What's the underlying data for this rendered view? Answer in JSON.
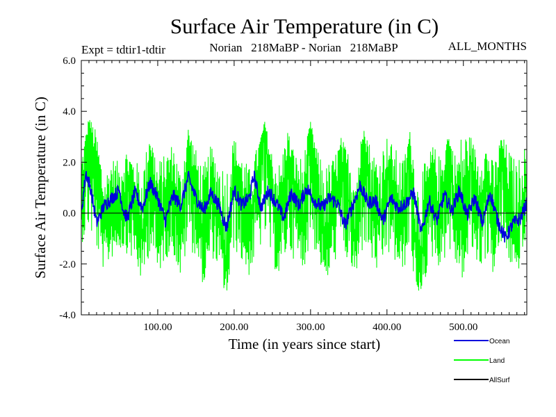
{
  "chart_data": {
    "type": "line",
    "title": "Surface Air Temperature (in C)",
    "subtitle_left": "Expt = tdtir1-tdtir",
    "subtitle_center": "Norian   218MaBP - Norian   218MaBP",
    "subtitle_right": "ALL_MONTHS",
    "xlabel": "Time (in years since start)",
    "ylabel": "Surface Air Temperature (in C)",
    "xlim": [
      0,
      583
    ],
    "ylim": [
      -4.0,
      6.0
    ],
    "x_ticks": [
      100,
      200,
      300,
      400,
      500
    ],
    "x_tick_labels": [
      "100.00",
      "200.00",
      "300.00",
      "400.00",
      "500.00"
    ],
    "y_ticks": [
      -4.0,
      -2.0,
      0.0,
      2.0,
      4.0,
      6.0
    ],
    "y_tick_labels": [
      "-4.0",
      "-2.0",
      "0.0",
      "2.0",
      "4.0",
      "6.0"
    ],
    "zero_line": true,
    "legend_position": "bottom-right",
    "series": [
      {
        "name": "Land",
        "color": "#00ff00",
        "x": [
          0,
          10,
          20,
          30,
          40,
          50,
          60,
          70,
          80,
          90,
          100,
          110,
          120,
          130,
          140,
          150,
          160,
          170,
          180,
          190,
          200,
          210,
          220,
          230,
          240,
          250,
          260,
          270,
          280,
          290,
          300,
          310,
          320,
          330,
          340,
          350,
          360,
          370,
          380,
          390,
          400,
          410,
          420,
          430,
          440,
          450,
          460,
          470,
          480,
          490,
          500,
          510,
          520,
          530,
          540,
          550,
          560,
          570,
          580
        ],
        "values": [
          0.3,
          3.5,
          1.5,
          -0.8,
          0.5,
          0.2,
          1.0,
          0.4,
          -1.2,
          2.3,
          -0.8,
          0.5,
          1.2,
          -1.0,
          2.5,
          0.9,
          -1.5,
          0.7,
          -0.3,
          -2.0,
          1.8,
          0.4,
          -0.8,
          1.2,
          3.5,
          0.5,
          -0.6,
          2.3,
          0.8,
          -0.5,
          3.4,
          0.6,
          -1.5,
          0.2,
          1.8,
          0.5,
          -1.2,
          3.2,
          0.4,
          -0.5,
          1.7,
          0.6,
          -0.9,
          2.9,
          -2.6,
          -0.8,
          1.2,
          -0.4,
          2.8,
          0.2,
          -0.6,
          2.1,
          0.3,
          1.5,
          -0.7,
          2.4,
          0.1,
          -1.0,
          0.9
        ],
        "upper_envelope": [
          2.3,
          3.8,
          3.2,
          1.5,
          2.2,
          2.0,
          2.6,
          2.1,
          1.8,
          3.2,
          2.1,
          2.3,
          2.8,
          1.7,
          3.4,
          2.5,
          1.9,
          2.7,
          2.1,
          1.9,
          3.0,
          2.3,
          1.8,
          2.6,
          3.6,
          2.4,
          2.0,
          3.3,
          2.3,
          2.2,
          3.6,
          2.4,
          1.9,
          2.2,
          3.0,
          2.4,
          2.1,
          3.5,
          2.5,
          2.3,
          3.0,
          2.6,
          2.1,
          3.2,
          1.6,
          2.0,
          2.7,
          2.2,
          3.1,
          2.3,
          3.4,
          3.0,
          2.2,
          2.6,
          2.0,
          3.1,
          2.5,
          2.0,
          2.6
        ],
        "lower_envelope": [
          -1.2,
          -0.8,
          -1.5,
          -2.3,
          -1.8,
          -1.4,
          -1.6,
          -2.0,
          -2.8,
          -1.5,
          -2.5,
          -1.8,
          -1.6,
          -2.6,
          -1.3,
          -1.8,
          -2.9,
          -1.7,
          -2.2,
          -3.5,
          -1.4,
          -2.0,
          -2.5,
          -1.6,
          -1.2,
          -2.0,
          -2.7,
          -1.5,
          -1.9,
          -2.3,
          -1.2,
          -1.8,
          -2.8,
          -2.0,
          -1.5,
          -2.1,
          -2.6,
          -1.3,
          -2.0,
          -2.5,
          -1.7,
          -2.0,
          -2.4,
          -1.6,
          -3.5,
          -2.6,
          -1.8,
          -2.2,
          -1.5,
          -2.1,
          -2.7,
          -1.6,
          -2.3,
          -1.8,
          -2.5,
          -1.4,
          -2.0,
          -2.5,
          -1.4
        ]
      },
      {
        "name": "Ocean",
        "color": "#0000dd",
        "x": [
          0,
          6,
          12,
          20,
          30,
          40,
          50,
          55,
          60,
          70,
          80,
          90,
          100,
          110,
          120,
          130,
          140,
          150,
          160,
          170,
          180,
          190,
          200,
          210,
          220,
          226,
          235,
          245,
          255,
          265,
          275,
          285,
          295,
          305,
          315,
          325,
          335,
          345,
          355,
          365,
          375,
          385,
          395,
          405,
          415,
          425,
          435,
          445,
          455,
          465,
          475,
          485,
          495,
          505,
          515,
          525,
          535,
          545,
          555,
          565,
          575,
          583
        ],
        "values": [
          0.0,
          1.6,
          1.0,
          -0.4,
          0.3,
          0.6,
          0.9,
          0.1,
          -0.2,
          0.8,
          0.2,
          1.2,
          0.6,
          -0.3,
          0.7,
          0.3,
          1.4,
          0.6,
          0.1,
          0.8,
          0.3,
          -0.6,
          0.9,
          0.3,
          0.6,
          1.5,
          0.2,
          0.9,
          0.4,
          -0.2,
          0.8,
          0.3,
          1.0,
          0.5,
          0.2,
          0.6,
          0.4,
          -0.5,
          0.3,
          1.1,
          0.4,
          0.5,
          -0.3,
          0.6,
          0.2,
          0.4,
          0.8,
          -0.8,
          0.5,
          -0.3,
          0.7,
          0.1,
          0.9,
          -0.1,
          0.6,
          -0.4,
          0.8,
          -0.3,
          -1.0,
          -0.4,
          -0.2,
          0.4
        ]
      },
      {
        "name": "AllSurf",
        "color": "#000000",
        "x": [],
        "values": []
      }
    ]
  }
}
